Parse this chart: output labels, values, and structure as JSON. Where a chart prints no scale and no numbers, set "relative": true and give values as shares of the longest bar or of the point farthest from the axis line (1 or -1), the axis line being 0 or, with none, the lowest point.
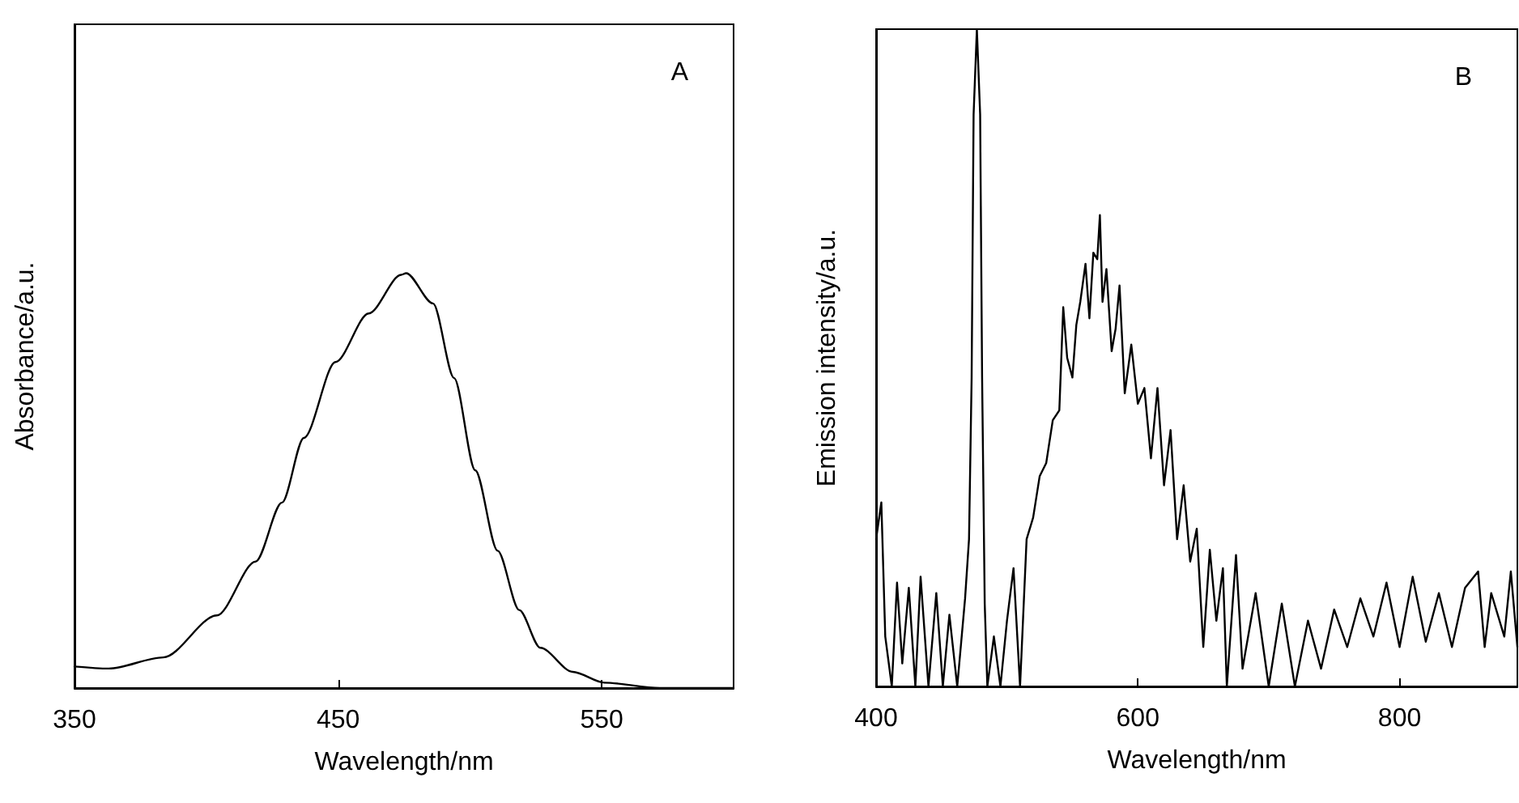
{
  "chart_data": [
    {
      "type": "line",
      "xlabel": "Wavelength/nm",
      "ylabel": "Absorbance/a.u.",
      "annotations": [
        "A"
      ],
      "relative": true,
      "xlim": [
        350,
        600
      ],
      "xticks": [
        350,
        450,
        550
      ],
      "tick_labels": "x",
      "grid": false,
      "marker": "none",
      "line_style": "solid",
      "series": [
        {
          "color": "#000000",
          "x": [
            350,
            363,
            383.7,
            404,
            418.7,
            428.7,
            437,
            449,
            461.6,
            473.9,
            475.8,
            486,
            494,
            502,
            510.5,
            518.7,
            526.7,
            539,
            551,
            572,
            600
          ],
          "values": [
            0.052,
            0.047,
            0.074,
            0.175,
            0.305,
            0.447,
            0.603,
            0.786,
            0.903,
            0.996,
            1,
            0.927,
            0.747,
            0.525,
            0.331,
            0.188,
            0.097,
            0.039,
            0.013,
            0,
            0
          ]
        }
      ]
    },
    {
      "type": "line",
      "xlabel": "Wavelength/nm",
      "ylabel": "Emission intensity/a.u.",
      "annotations": [
        "B"
      ],
      "relative": true,
      "xlim": [
        400,
        890
      ],
      "xticks": [
        400,
        600,
        800
      ],
      "tick_labels": "x",
      "grid": false,
      "marker": "none",
      "line_style": "solid",
      "series": [
        {
          "color": "#000000",
          "x": [
            400,
            404,
            407,
            412,
            416,
            420,
            425,
            430,
            434,
            440,
            446,
            451,
            456,
            462,
            468,
            471,
            473,
            474.5,
            477,
            479.5,
            481,
            483,
            485,
            490,
            495,
            500,
            505,
            510,
            515,
            520,
            525,
            530,
            535,
            540,
            543,
            546,
            550,
            553,
            556,
            560,
            563,
            566,
            569,
            571,
            573,
            576,
            580,
            583,
            586,
            590,
            595,
            600,
            605,
            610,
            615,
            620,
            625,
            630,
            635,
            640,
            645,
            650,
            655,
            660,
            665,
            668,
            675,
            680,
            690,
            700,
            710,
            720,
            730,
            740,
            750,
            760,
            770,
            780,
            790,
            800,
            810,
            820,
            830,
            840,
            850,
            860,
            865,
            870,
            880,
            885,
            890
          ],
          "values": [
            0.224,
            0.28,
            0.076,
            0,
            0.158,
            0.035,
            0.15,
            0,
            0.167,
            0,
            0.142,
            0,
            0.109,
            0,
            0.134,
            0.224,
            0.47,
            0.87,
            1,
            0.87,
            0.47,
            0.126,
            0,
            0.076,
            0,
            0.1,
            0.18,
            0,
            0.224,
            0.257,
            0.32,
            0.34,
            0.405,
            0.42,
            0.577,
            0.5,
            0.47,
            0.55,
            0.585,
            0.643,
            0.56,
            0.66,
            0.65,
            0.717,
            0.585,
            0.635,
            0.51,
            0.544,
            0.61,
            0.446,
            0.52,
            0.43,
            0.454,
            0.347,
            0.454,
            0.306,
            0.39,
            0.224,
            0.306,
            0.19,
            0.24,
            0.06,
            0.208,
            0.1,
            0.18,
            0,
            0.2,
            0.027,
            0.142,
            0,
            0.126,
            0,
            0.1,
            0.027,
            0.117,
            0.06,
            0.134,
            0.076,
            0.158,
            0.06,
            0.167,
            0.068,
            0.142,
            0.06,
            0.15,
            0.175,
            0.06,
            0.142,
            0.076,
            0.175,
            0.06
          ]
        }
      ]
    }
  ]
}
